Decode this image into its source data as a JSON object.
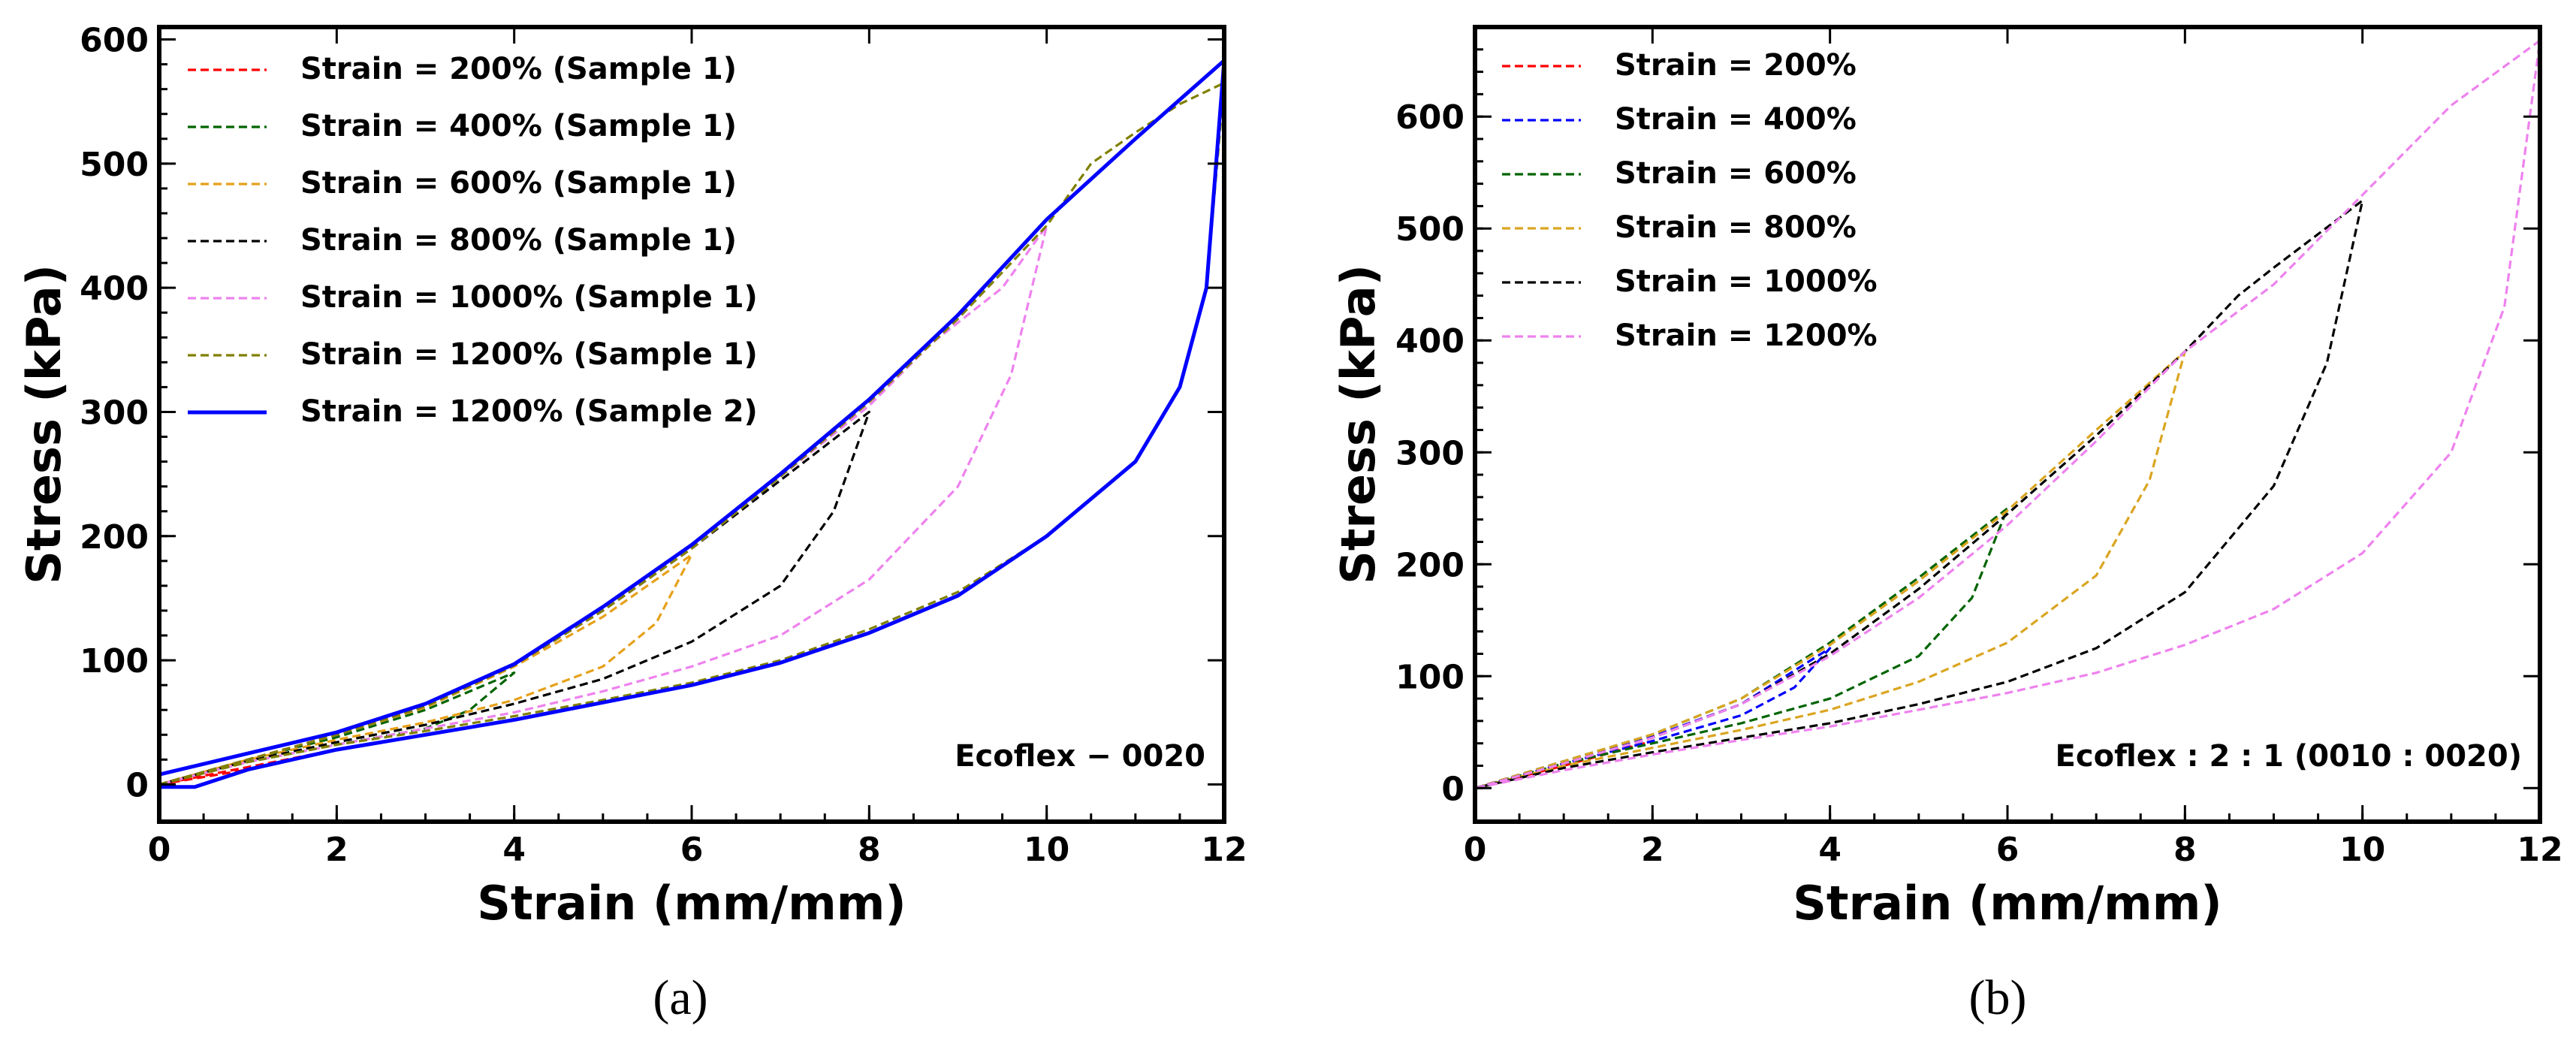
{
  "chart_data": [
    {
      "type": "line",
      "id": "a",
      "caption": "(a)",
      "xlabel": "Strain (mm/mm)",
      "ylabel": "Stress (kPa)",
      "xlim": [
        0,
        12
      ],
      "ylim": [
        -30,
        610
      ],
      "xticks": [
        0,
        2,
        4,
        6,
        8,
        10,
        12
      ],
      "yticks": [
        0,
        100,
        200,
        300,
        400,
        500,
        600
      ],
      "annotation": "Ecoflex − 0020",
      "legend_position": "top-left",
      "series": [
        {
          "name": "Strain = 200% (Sample 1)",
          "color": "#ff0000",
          "dash": "dashed",
          "load": [
            [
              0,
              0
            ],
            [
              1,
              12
            ],
            [
              2,
              28
            ]
          ],
          "unload": [
            [
              2,
              28
            ],
            [
              1,
              14
            ],
            [
              0,
              0
            ]
          ]
        },
        {
          "name": "Strain = 400% (Sample 1)",
          "color": "#006400",
          "dash": "dashed",
          "load": [
            [
              0,
              0
            ],
            [
              1,
              20
            ],
            [
              2,
              38
            ],
            [
              3,
              60
            ],
            [
              4,
              90
            ]
          ],
          "unload": [
            [
              4,
              90
            ],
            [
              3.5,
              60
            ],
            [
              3,
              45
            ],
            [
              2,
              32
            ],
            [
              1,
              18
            ],
            [
              0,
              0
            ]
          ]
        },
        {
          "name": "Strain = 600% (Sample 1)",
          "color": "#e6a11a",
          "dash": "dashed",
          "load": [
            [
              0,
              0
            ],
            [
              1,
              20
            ],
            [
              2,
              40
            ],
            [
              3,
              62
            ],
            [
              4,
              95
            ],
            [
              5,
              135
            ],
            [
              6,
              185
            ]
          ],
          "unload": [
            [
              6,
              185
            ],
            [
              5.6,
              130
            ],
            [
              5,
              95
            ],
            [
              4,
              68
            ],
            [
              3,
              50
            ],
            [
              2,
              36
            ],
            [
              1,
              20
            ],
            [
              0,
              0
            ]
          ]
        },
        {
          "name": "Strain = 800% (Sample 1)",
          "color": "#000000",
          "dash": "dashed",
          "load": [
            [
              0,
              0
            ],
            [
              1,
              20
            ],
            [
              2,
              40
            ],
            [
              3,
              63
            ],
            [
              4,
              96
            ],
            [
              5,
              140
            ],
            [
              6,
              190
            ],
            [
              7,
              245
            ],
            [
              8,
              300
            ]
          ],
          "unload": [
            [
              8,
              300
            ],
            [
              7.6,
              220
            ],
            [
              7,
              160
            ],
            [
              6,
              115
            ],
            [
              5,
              85
            ],
            [
              4,
              65
            ],
            [
              3,
              48
            ],
            [
              2,
              34
            ],
            [
              1,
              19
            ],
            [
              0,
              0
            ]
          ]
        },
        {
          "name": "Strain = 1000% (Sample 1)",
          "color": "#ee82ee",
          "dash": "dashed",
          "load": [
            [
              0,
              0
            ],
            [
              1,
              20
            ],
            [
              2,
              40
            ],
            [
              3,
              63
            ],
            [
              4,
              96
            ],
            [
              5,
              140
            ],
            [
              6,
              190
            ],
            [
              7,
              248
            ],
            [
              8,
              305
            ],
            [
              8.7,
              355
            ],
            [
              9.5,
              400
            ],
            [
              10,
              450
            ]
          ],
          "unload": [
            [
              10,
              450
            ],
            [
              9.6,
              330
            ],
            [
              9,
              240
            ],
            [
              8,
              165
            ],
            [
              7,
              120
            ],
            [
              6,
              95
            ],
            [
              5,
              75
            ],
            [
              4,
              58
            ],
            [
              3,
              45
            ],
            [
              2,
              32
            ],
            [
              1,
              18
            ],
            [
              0,
              0
            ]
          ]
        },
        {
          "name": "Strain = 1200% (Sample 1)",
          "color": "#808000",
          "dash": "dashed",
          "load": [
            [
              0,
              0
            ],
            [
              1,
              20
            ],
            [
              2,
              40
            ],
            [
              3,
              63
            ],
            [
              4,
              96
            ],
            [
              5,
              140
            ],
            [
              6,
              190
            ],
            [
              7,
              248
            ],
            [
              8,
              308
            ],
            [
              9,
              375
            ],
            [
              10,
              450
            ],
            [
              10.5,
              500
            ],
            [
              11,
              525
            ],
            [
              11.5,
              548
            ],
            [
              12,
              565
            ]
          ],
          "unload": [
            [
              12,
              565
            ],
            [
              11.8,
              400
            ],
            [
              11.5,
              320
            ],
            [
              11,
              260
            ],
            [
              10,
              200
            ],
            [
              9,
              155
            ],
            [
              8,
              125
            ],
            [
              7,
              100
            ],
            [
              6,
              82
            ],
            [
              5,
              68
            ],
            [
              4,
              55
            ],
            [
              3,
              43
            ],
            [
              2,
              32
            ],
            [
              1,
              18
            ],
            [
              0,
              0
            ]
          ]
        },
        {
          "name": "Strain = 1200% (Sample 2)",
          "color": "#0000ff",
          "dash": "solid",
          "load": [
            [
              0,
              8
            ],
            [
              1,
              25
            ],
            [
              2,
              42
            ],
            [
              3,
              65
            ],
            [
              4,
              97
            ],
            [
              5,
              143
            ],
            [
              6,
              193
            ],
            [
              7,
              250
            ],
            [
              8,
              310
            ],
            [
              9,
              378
            ],
            [
              10,
              455
            ],
            [
              11,
              520
            ],
            [
              12,
              583
            ]
          ],
          "unload": [
            [
              12,
              583
            ],
            [
              11.8,
              400
            ],
            [
              11.5,
              320
            ],
            [
              11,
              260
            ],
            [
              10,
              200
            ],
            [
              9,
              152
            ],
            [
              8,
              122
            ],
            [
              7,
              98
            ],
            [
              6,
              80
            ],
            [
              5,
              66
            ],
            [
              4,
              52
            ],
            [
              3,
              40
            ],
            [
              2,
              28
            ],
            [
              1,
              12
            ],
            [
              0.4,
              -2
            ],
            [
              0,
              -2
            ]
          ]
        }
      ]
    },
    {
      "type": "line",
      "id": "b",
      "caption": "(b)",
      "xlabel": "Strain (mm/mm)",
      "ylabel": "Stress (kPa)",
      "xlim": [
        0,
        12
      ],
      "ylim": [
        -30,
        680
      ],
      "xticks": [
        0,
        2,
        4,
        6,
        8,
        10,
        12
      ],
      "yticks": [
        0,
        100,
        200,
        300,
        400,
        500,
        600
      ],
      "annotation": "Ecoflex : 2 : 1 (0010 : 0020)",
      "legend_position": "top-left",
      "series": [
        {
          "name": "Strain = 200%",
          "color": "#ff0000",
          "dash": "dashed",
          "load": [
            [
              0,
              0
            ],
            [
              1,
              22
            ],
            [
              2,
              42
            ]
          ],
          "unload": [
            [
              2,
              42
            ],
            [
              1,
              20
            ],
            [
              0,
              0
            ]
          ]
        },
        {
          "name": "Strain = 400%",
          "color": "#0000ff",
          "dash": "dashed",
          "load": [
            [
              0,
              0
            ],
            [
              1,
              24
            ],
            [
              2,
              46
            ],
            [
              3,
              75
            ],
            [
              4,
              125
            ]
          ],
          "unload": [
            [
              4,
              125
            ],
            [
              3.6,
              90
            ],
            [
              3,
              65
            ],
            [
              2,
              42
            ],
            [
              1,
              22
            ],
            [
              0,
              0
            ]
          ]
        },
        {
          "name": "Strain = 600%",
          "color": "#006400",
          "dash": "dashed",
          "load": [
            [
              0,
              0
            ],
            [
              1,
              24
            ],
            [
              2,
              48
            ],
            [
              3,
              80
            ],
            [
              4,
              130
            ],
            [
              5,
              188
            ],
            [
              6,
              250
            ]
          ],
          "unload": [
            [
              6,
              250
            ],
            [
              5.6,
              170
            ],
            [
              5,
              118
            ],
            [
              4,
              80
            ],
            [
              3,
              58
            ],
            [
              2,
              40
            ],
            [
              1,
              22
            ],
            [
              0,
              0
            ]
          ]
        },
        {
          "name": "Strain = 800%",
          "color": "#daa520",
          "dash": "dashed",
          "load": [
            [
              0,
              0
            ],
            [
              1,
              24
            ],
            [
              2,
              48
            ],
            [
              3,
              80
            ],
            [
              4,
              128
            ],
            [
              5,
              185
            ],
            [
              6,
              248
            ],
            [
              7,
              320
            ],
            [
              8,
              390
            ]
          ],
          "unload": [
            [
              8,
              390
            ],
            [
              7.6,
              275
            ],
            [
              7,
              190
            ],
            [
              6,
              130
            ],
            [
              5,
              95
            ],
            [
              4,
              70
            ],
            [
              3,
              52
            ],
            [
              2,
              36
            ],
            [
              1,
              20
            ],
            [
              0,
              0
            ]
          ]
        },
        {
          "name": "Strain = 1000%",
          "color": "#000000",
          "dash": "dashed",
          "load": [
            [
              0,
              0
            ],
            [
              1,
              22
            ],
            [
              2,
              45
            ],
            [
              3,
              75
            ],
            [
              4,
              120
            ],
            [
              5,
              178
            ],
            [
              6,
              245
            ],
            [
              7,
              315
            ],
            [
              8,
              390
            ],
            [
              8.6,
              440
            ],
            [
              9,
              465
            ],
            [
              10,
              525
            ]
          ],
          "unload": [
            [
              10,
              525
            ],
            [
              9.6,
              380
            ],
            [
              9,
              270
            ],
            [
              8,
              175
            ],
            [
              7,
              125
            ],
            [
              6,
              95
            ],
            [
              5,
              75
            ],
            [
              4,
              58
            ],
            [
              3,
              45
            ],
            [
              2,
              32
            ],
            [
              1,
              18
            ],
            [
              0,
              0
            ]
          ]
        },
        {
          "name": "Strain = 1200%",
          "color": "#ee82ee",
          "dash": "dashed",
          "load": [
            [
              0,
              0
            ],
            [
              1,
              22
            ],
            [
              2,
              45
            ],
            [
              3,
              75
            ],
            [
              4,
              118
            ],
            [
              5,
              170
            ],
            [
              6,
              235
            ],
            [
              7,
              310
            ],
            [
              8,
              390
            ],
            [
              9,
              450
            ],
            [
              10,
              530
            ],
            [
              11,
              610
            ],
            [
              12,
              668
            ]
          ],
          "unload": [
            [
              12,
              668
            ],
            [
              11.6,
              430
            ],
            [
              11,
              300
            ],
            [
              10,
              210
            ],
            [
              9,
              160
            ],
            [
              8,
              128
            ],
            [
              7,
              103
            ],
            [
              6,
              85
            ],
            [
              5,
              70
            ],
            [
              4,
              55
            ],
            [
              3,
              43
            ],
            [
              2,
              30
            ],
            [
              1,
              16
            ],
            [
              0,
              0
            ]
          ]
        }
      ]
    }
  ]
}
